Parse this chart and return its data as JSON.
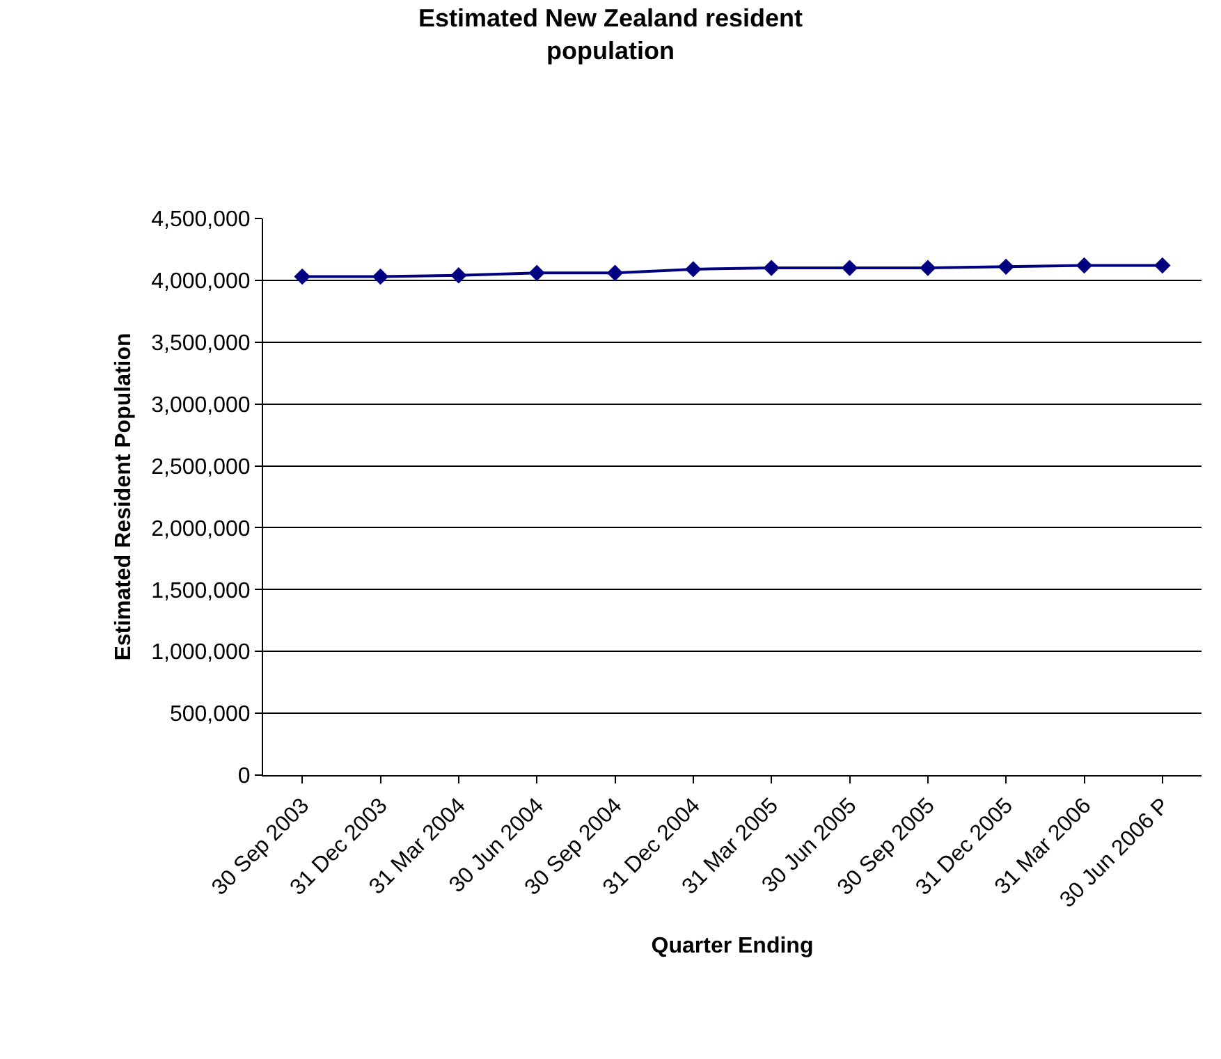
{
  "chart_data": {
    "type": "line",
    "title": "Estimated New Zealand resident\npopulation",
    "xlabel": "Quarter Ending",
    "ylabel": "Estimated Resident Population",
    "categories": [
      "30 Sep 2003",
      "31 Dec 2003",
      "31 Mar 2004",
      "30 Jun 2004",
      "30 Sep 2004",
      "31 Dec 2004",
      "31 Mar 2005",
      "30 Jun 2005",
      "30 Sep 2005",
      "31 Dec 2005",
      "31 Mar 2006",
      "30 Jun 2006 P"
    ],
    "series": [
      {
        "color": "#000080",
        "values": [
          4030000,
          4030000,
          4040000,
          4060000,
          4060000,
          4090000,
          4100000,
          4100000,
          4100000,
          4110000,
          4120000,
          4120000
        ]
      }
    ],
    "ylim": [
      0,
      4500000
    ],
    "yticks": [
      {
        "value": 0,
        "label": "0"
      },
      {
        "value": 500000,
        "label": "500,000"
      },
      {
        "value": 1000000,
        "label": "1,000,000"
      },
      {
        "value": 1500000,
        "label": "1,500,000"
      },
      {
        "value": 2000000,
        "label": "2,000,000"
      },
      {
        "value": 2500000,
        "label": "2,500,000"
      },
      {
        "value": 3000000,
        "label": "3,000,000"
      },
      {
        "value": 3500000,
        "label": "3,500,000"
      },
      {
        "value": 4000000,
        "label": "4,000,000"
      },
      {
        "value": 4500000,
        "label": "4,500,000"
      }
    ],
    "grid": "y",
    "marker": "diamond",
    "line_style": "solid"
  }
}
